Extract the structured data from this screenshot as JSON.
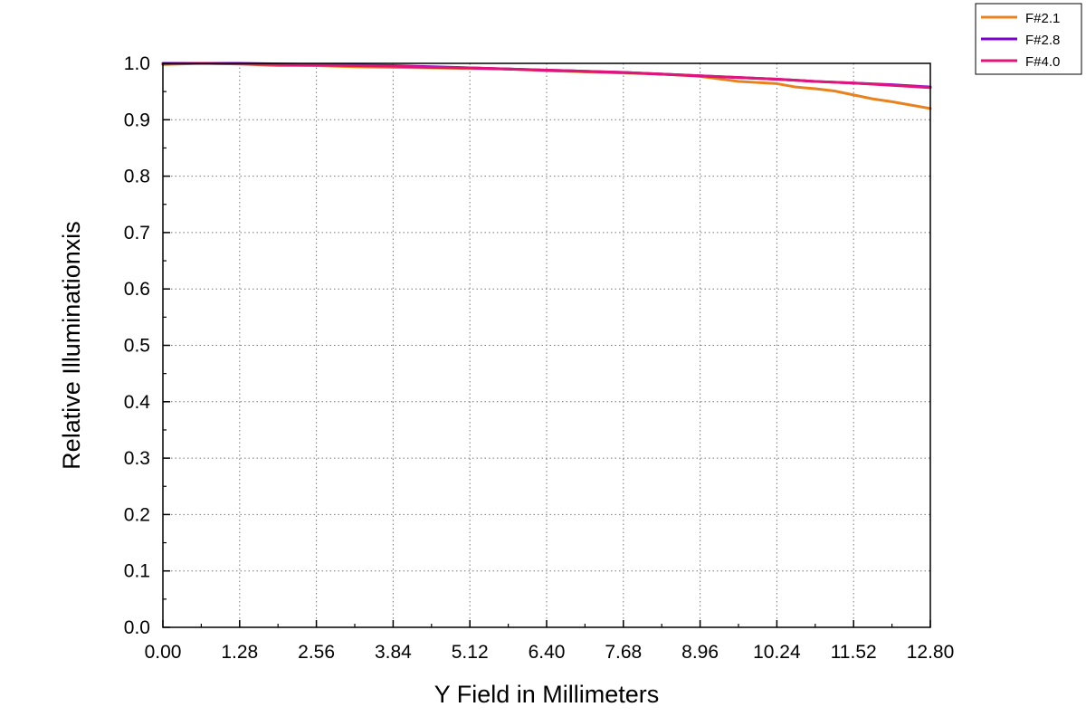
{
  "chart_data": {
    "type": "line",
    "title": "",
    "xlabel": "Y Field in Millimeters",
    "ylabel": "Relative Illuminationxis",
    "xlim": [
      0,
      12.8
    ],
    "ylim": [
      0,
      1.0
    ],
    "xticks": [
      "0.00",
      "1.28",
      "2.56",
      "3.84",
      "5.12",
      "6.40",
      "7.68",
      "8.96",
      "10.24",
      "11.52",
      "12.80"
    ],
    "yticks": [
      "0.0",
      "0.1",
      "0.2",
      "0.3",
      "0.4",
      "0.5",
      "0.6",
      "0.7",
      "0.8",
      "0.9",
      "1.0"
    ],
    "grid": true,
    "legend_position": "top-right",
    "series": [
      {
        "name": "F#2.1",
        "color": "#E8821E",
        "x": [
          0,
          0.64,
          1.28,
          1.92,
          2.56,
          3.2,
          3.84,
          4.48,
          5.12,
          5.76,
          6.4,
          7.04,
          7.68,
          8.32,
          8.96,
          9.6,
          10.24,
          10.56,
          10.88,
          11.2,
          11.52,
          11.84,
          12.16,
          12.48,
          12.8
        ],
        "y": [
          0.998,
          1.0,
          0.999,
          0.996,
          0.996,
          0.994,
          0.993,
          0.992,
          0.991,
          0.99,
          0.987,
          0.985,
          0.983,
          0.981,
          0.977,
          0.968,
          0.964,
          0.958,
          0.955,
          0.951,
          0.944,
          0.937,
          0.932,
          0.926,
          0.92
        ]
      },
      {
        "name": "F#2.8",
        "color": "#7B00C8",
        "x": [
          0,
          0.64,
          1.28,
          1.92,
          2.56,
          3.2,
          3.84,
          4.48,
          5.12,
          5.76,
          6.4,
          7.04,
          7.68,
          8.32,
          8.96,
          9.6,
          10.24,
          10.88,
          11.52,
          12.16,
          12.8
        ],
        "y": [
          1.0,
          1.0,
          1.0,
          0.999,
          0.998,
          0.997,
          0.996,
          0.994,
          0.992,
          0.99,
          0.988,
          0.986,
          0.984,
          0.981,
          0.978,
          0.975,
          0.972,
          0.968,
          0.965,
          0.962,
          0.958
        ]
      },
      {
        "name": "F#4.0",
        "color": "#E0157A",
        "x": [
          0,
          0.64,
          1.28,
          1.92,
          2.56,
          3.2,
          3.84,
          4.48,
          5.12,
          5.76,
          6.4,
          7.04,
          7.68,
          8.32,
          8.96,
          9.6,
          10.24,
          10.88,
          11.52,
          12.16,
          12.8
        ],
        "y": [
          0.999,
          1.0,
          0.999,
          0.998,
          0.997,
          0.996,
          0.995,
          0.993,
          0.992,
          0.99,
          0.988,
          0.986,
          0.984,
          0.981,
          0.978,
          0.975,
          0.972,
          0.968,
          0.965,
          0.961,
          0.957
        ]
      }
    ]
  }
}
